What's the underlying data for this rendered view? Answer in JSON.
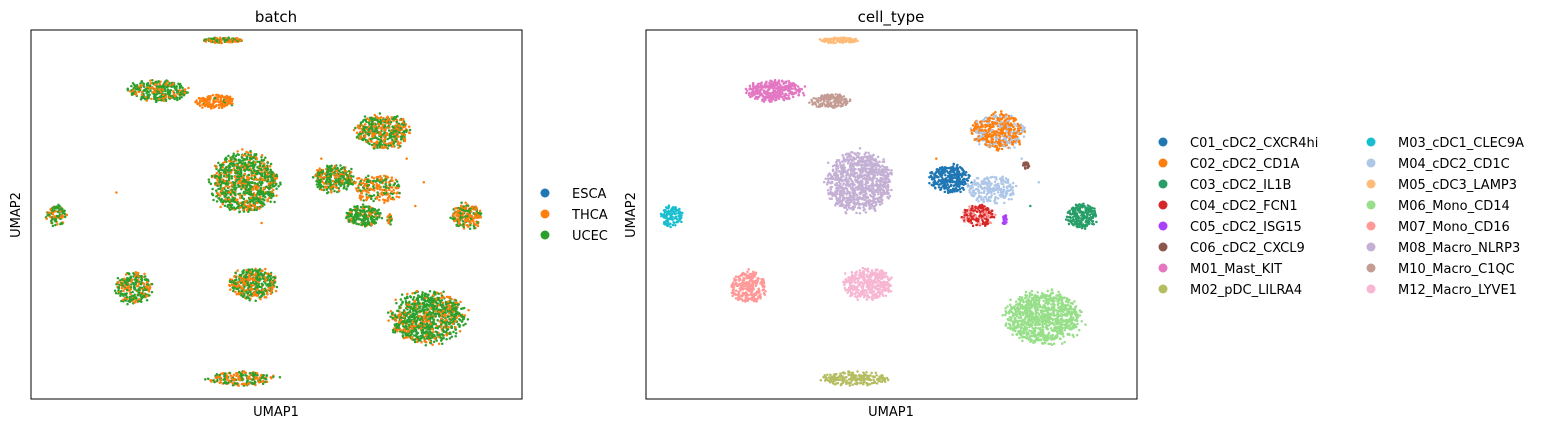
{
  "chart_data": [
    {
      "type": "scatter",
      "title": "batch",
      "xlabel": "UMAP1",
      "ylabel": "UMAP2",
      "x_ticks": "none",
      "y_ticks": "none",
      "grid": false,
      "legend_placement": "right",
      "legend": [
        {
          "label": "ESCA",
          "color": "#1f77b4"
        },
        {
          "label": "THCA",
          "color": "#ff7f0e"
        },
        {
          "label": "UCEC",
          "color": "#2ca02c"
        }
      ],
      "clusters": [
        {
          "x": 0.27,
          "y": 0.97,
          "rx": 0.045,
          "ry": 0.008,
          "n": 120,
          "mix": [
            0,
            0.5,
            0.5
          ]
        },
        {
          "x": 0.12,
          "y": 0.82,
          "rx": 0.065,
          "ry": 0.03,
          "n": 330,
          "mix": [
            0,
            0.25,
            0.75
          ]
        },
        {
          "x": 0.25,
          "y": 0.79,
          "rx": 0.045,
          "ry": 0.02,
          "n": 160,
          "mix": [
            0,
            0.92,
            0.08
          ]
        },
        {
          "x": 0.645,
          "y": 0.7,
          "rx": 0.06,
          "ry": 0.05,
          "n": 480,
          "mix": [
            0,
            0.4,
            0.6
          ]
        },
        {
          "x": 0.32,
          "y": 0.55,
          "rx": 0.075,
          "ry": 0.085,
          "n": 950,
          "mix": [
            0,
            0.3,
            0.7
          ]
        },
        {
          "x": 0.53,
          "y": 0.56,
          "rx": 0.045,
          "ry": 0.04,
          "n": 300,
          "mix": [
            0,
            0.3,
            0.7
          ]
        },
        {
          "x": 0.63,
          "y": 0.53,
          "rx": 0.055,
          "ry": 0.04,
          "n": 220,
          "mix": [
            0,
            0.6,
            0.4
          ]
        },
        {
          "x": 0.84,
          "y": 0.45,
          "rx": 0.035,
          "ry": 0.035,
          "n": 220,
          "mix": [
            0,
            0.55,
            0.45
          ]
        },
        {
          "x": 0.6,
          "y": 0.45,
          "rx": 0.04,
          "ry": 0.03,
          "n": 230,
          "mix": [
            0,
            0.2,
            0.8
          ]
        },
        {
          "x": 0.66,
          "y": 0.44,
          "rx": 0.006,
          "ry": 0.015,
          "n": 25,
          "mix": [
            0,
            0.5,
            0.5
          ]
        },
        {
          "x": -0.12,
          "y": 0.45,
          "rx": 0.025,
          "ry": 0.03,
          "n": 110,
          "mix": [
            0,
            0.3,
            0.7
          ]
        },
        {
          "x": 0.06,
          "y": 0.24,
          "rx": 0.04,
          "ry": 0.045,
          "n": 260,
          "mix": [
            0,
            0.3,
            0.7
          ]
        },
        {
          "x": 0.34,
          "y": 0.25,
          "rx": 0.055,
          "ry": 0.045,
          "n": 400,
          "mix": [
            0,
            0.35,
            0.65
          ]
        },
        {
          "x": 0.75,
          "y": 0.15,
          "rx": 0.085,
          "ry": 0.075,
          "n": 950,
          "mix": [
            0,
            0.25,
            0.75
          ]
        },
        {
          "x": 0.31,
          "y": -0.03,
          "rx": 0.075,
          "ry": 0.02,
          "n": 200,
          "mix": [
            0,
            0.5,
            0.5
          ]
        }
      ],
      "outliers": [
        {
          "x": 0.5,
          "y": 0.62
        },
        {
          "x": 0.57,
          "y": 0.58
        },
        {
          "x": 0.67,
          "y": 0.5
        },
        {
          "x": 0.7,
          "y": 0.62
        },
        {
          "x": 0.74,
          "y": 0.55
        },
        {
          "x": 0.72,
          "y": 0.48
        },
        {
          "x": 0.36,
          "y": 0.43
        },
        {
          "x": 0.02,
          "y": 0.52
        }
      ]
    },
    {
      "type": "scatter",
      "title": "cell_type",
      "xlabel": "UMAP1",
      "ylabel": "UMAP2",
      "x_ticks": "none",
      "y_ticks": "none",
      "grid": false,
      "legend_placement": "right",
      "legend": [
        {
          "label": "C01_cDC2_CXCR4hi",
          "color": "#1f77b4"
        },
        {
          "label": "C02_cDC2_CD1A",
          "color": "#ff7f0e"
        },
        {
          "label": "C03_cDC2_IL1B",
          "color": "#279e68"
        },
        {
          "label": "C04_cDC2_FCN1",
          "color": "#d62728"
        },
        {
          "label": "C05_cDC2_ISG15",
          "color": "#aa40fc"
        },
        {
          "label": "C06_cDC2_CXCL9",
          "color": "#8c564b"
        },
        {
          "label": "M01_Mast_KIT",
          "color": "#e377c2"
        },
        {
          "label": "M02_pDC_LILRA4",
          "color": "#b5bd61"
        },
        {
          "label": "M03_cDC1_CLEC9A",
          "color": "#17becf"
        },
        {
          "label": "M04_cDC2_CD1C",
          "color": "#aec7e8"
        },
        {
          "label": "M05_cDC3_LAMP3",
          "color": "#ffbb78"
        },
        {
          "label": "M06_Mono_CD14",
          "color": "#98df8a"
        },
        {
          "label": "M07_Mono_CD16",
          "color": "#ff9896"
        },
        {
          "label": "M08_Macro_NLRP3",
          "color": "#c5b0d5"
        },
        {
          "label": "M10_Macro_C1QC",
          "color": "#c49c94"
        },
        {
          "label": "M12_Macro_LYVE1",
          "color": "#f7b6d2"
        }
      ],
      "clusters": [
        {
          "x": 0.27,
          "y": 0.97,
          "rx": 0.045,
          "ry": 0.008,
          "n": 120,
          "type": 10
        },
        {
          "x": 0.12,
          "y": 0.82,
          "rx": 0.065,
          "ry": 0.03,
          "n": 330,
          "type": 6
        },
        {
          "x": 0.25,
          "y": 0.79,
          "rx": 0.045,
          "ry": 0.02,
          "n": 160,
          "type": 14
        },
        {
          "x": 0.645,
          "y": 0.7,
          "rx": 0.06,
          "ry": 0.05,
          "n": 480,
          "type": 1,
          "alt_type": 9,
          "alt_share": 0.35
        },
        {
          "x": 0.32,
          "y": 0.55,
          "rx": 0.075,
          "ry": 0.085,
          "n": 950,
          "type": 13
        },
        {
          "x": 0.53,
          "y": 0.56,
          "rx": 0.045,
          "ry": 0.04,
          "n": 300,
          "type": 0
        },
        {
          "x": 0.63,
          "y": 0.53,
          "rx": 0.055,
          "ry": 0.04,
          "n": 220,
          "type": 9
        },
        {
          "x": 0.84,
          "y": 0.45,
          "rx": 0.035,
          "ry": 0.035,
          "n": 220,
          "type": 2
        },
        {
          "x": 0.6,
          "y": 0.45,
          "rx": 0.04,
          "ry": 0.03,
          "n": 230,
          "type": 3,
          "alt_type": 12,
          "alt_share": 0.3
        },
        {
          "x": 0.66,
          "y": 0.44,
          "rx": 0.006,
          "ry": 0.015,
          "n": 25,
          "type": 4
        },
        {
          "x": 0.71,
          "y": 0.6,
          "rx": 0.008,
          "ry": 0.01,
          "n": 25,
          "type": 5
        },
        {
          "x": -0.12,
          "y": 0.45,
          "rx": 0.025,
          "ry": 0.03,
          "n": 110,
          "type": 8
        },
        {
          "x": 0.06,
          "y": 0.24,
          "rx": 0.04,
          "ry": 0.045,
          "n": 260,
          "type": 12
        },
        {
          "x": 0.34,
          "y": 0.25,
          "rx": 0.055,
          "ry": 0.045,
          "n": 400,
          "type": 15
        },
        {
          "x": 0.75,
          "y": 0.15,
          "rx": 0.085,
          "ry": 0.075,
          "n": 950,
          "type": 11
        },
        {
          "x": 0.31,
          "y": -0.03,
          "rx": 0.075,
          "ry": 0.02,
          "n": 200,
          "type": 7
        }
      ],
      "outliers": [
        {
          "x": 0.5,
          "y": 0.62,
          "type": 1
        },
        {
          "x": 0.57,
          "y": 0.58,
          "type": 0
        },
        {
          "x": 0.67,
          "y": 0.5,
          "type": 9
        },
        {
          "x": 0.7,
          "y": 0.62,
          "type": 9
        },
        {
          "x": 0.74,
          "y": 0.55,
          "type": 9
        },
        {
          "x": 0.72,
          "y": 0.48,
          "type": 2
        }
      ]
    }
  ]
}
